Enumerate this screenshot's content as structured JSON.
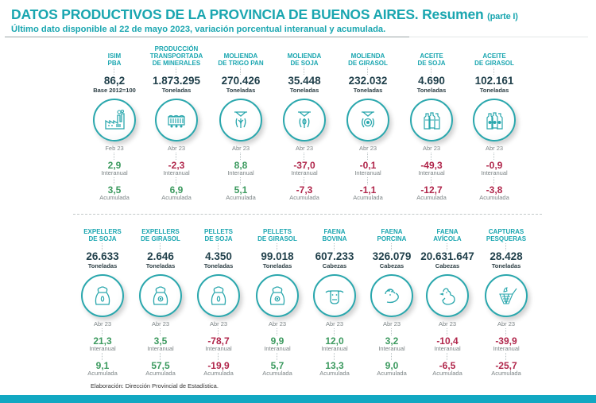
{
  "header": {
    "title": "DATOS PRODUCTIVOS DE LA PROVINCIA DE BUENOS AIRES. Resumen",
    "title_part": "(parte I)",
    "subtitle": "Último dato disponible al 22 de mayo 2023, variación porcentual interanual y acumulada."
  },
  "labels": {
    "interanual": "Interanual",
    "acumulada": "Acumulada"
  },
  "row1": [
    {
      "name1": "ISIM",
      "name2": "PBA",
      "name3": "",
      "value": "86,2",
      "unit": "Base 2012=100",
      "icon": "factory-icon",
      "period": "Feb 23",
      "interanual": "2,9",
      "acumulada": "3,5"
    },
    {
      "name1": "PRODUCCIÓN",
      "name2": "TRANSPORTADA",
      "name3": "DE MINERALES",
      "value": "1.873.295",
      "unit": "Toneladas",
      "icon": "mineral-wagon-icon",
      "period": "Abr 23",
      "interanual": "-2,3",
      "acumulada": "6,9"
    },
    {
      "name1": "MOLIENDA",
      "name2": "DE TRIGO PAN",
      "name3": "",
      "value": "270.426",
      "unit": "Toneladas",
      "icon": "wheat-mill-icon",
      "period": "Abr 23",
      "interanual": "8,8",
      "acumulada": "5,1"
    },
    {
      "name1": "MOLIENDA",
      "name2": "DE SOJA",
      "name3": "",
      "value": "35.448",
      "unit": "Toneladas",
      "icon": "soy-mill-icon",
      "period": "Abr 23",
      "interanual": "-37,0",
      "acumulada": "-7,3"
    },
    {
      "name1": "MOLIENDA",
      "name2": "DE GIRASOL",
      "name3": "",
      "value": "232.032",
      "unit": "Toneladas",
      "icon": "sunflower-mill-icon",
      "period": "Abr 23",
      "interanual": "-0,1",
      "acumulada": "-1,1"
    },
    {
      "name1": "ACEITE",
      "name2": "DE SOJA",
      "name3": "",
      "value": "4.690",
      "unit": "Toneladas",
      "icon": "soy-oil-bottles-icon",
      "period": "Abr 23",
      "interanual": "-49,3",
      "acumulada": "-12,7"
    },
    {
      "name1": "ACEITE",
      "name2": "DE GIRASOL",
      "name3": "",
      "value": "102.161",
      "unit": "Toneladas",
      "icon": "sunflower-oil-bottles-icon",
      "period": "Abr 23",
      "interanual": "-0,9",
      "acumulada": "-3,8"
    }
  ],
  "row2": [
    {
      "name1": "EXPELLERS",
      "name2": "DE SOJA",
      "value": "26.633",
      "unit": "Toneladas",
      "icon": "soy-sack-icon",
      "period": "Abr 23",
      "interanual": "21,3",
      "acumulada": "9,1"
    },
    {
      "name1": "EXPELLERS",
      "name2": "DE GIRASOL",
      "value": "2.646",
      "unit": "Toneladas",
      "icon": "sunflower-sack-icon",
      "period": "Abr 23",
      "interanual": "3,5",
      "acumulada": "57,5"
    },
    {
      "name1": "PELLETS",
      "name2": "DE SOJA",
      "value": "4.350",
      "unit": "Toneladas",
      "icon": "soy-sack-icon",
      "period": "Abr 23",
      "interanual": "-78,7",
      "acumulada": "-19,9"
    },
    {
      "name1": "PELLETS",
      "name2": "DE GIRASOL",
      "value": "99.018",
      "unit": "Toneladas",
      "icon": "sunflower-sack-icon",
      "period": "Abr 23",
      "interanual": "9,9",
      "acumulada": "5,7"
    },
    {
      "name1": "FAENA",
      "name2": "BOVINA",
      "value": "607.233",
      "unit": "Cabezas",
      "icon": "cow-icon",
      "period": "Abr 23",
      "interanual": "12,0",
      "acumulada": "13,3"
    },
    {
      "name1": "FAENA",
      "name2": "PORCINA",
      "value": "326.079",
      "unit": "Cabezas",
      "icon": "pig-icon",
      "period": "Abr 23",
      "interanual": "3,2",
      "acumulada": "9,0"
    },
    {
      "name1": "FAENA",
      "name2": "AVÍCOLA",
      "value": "20.631.647",
      "unit": "Cabezas",
      "icon": "chicken-icon",
      "period": "Abr 23",
      "interanual": "-10,4",
      "acumulada": "-6,5"
    },
    {
      "name1": "CAPTURAS",
      "name2": "PESQUERAS",
      "value": "28.428",
      "unit": "Toneladas",
      "icon": "fishing-net-icon",
      "period": "Abr 23",
      "interanual": "-39,9",
      "acumulada": "-25,7"
    }
  ],
  "colors": {
    "accent": "#1aa6b0",
    "positive": "#3c9a5f",
    "negative": "#b0254a",
    "bottom_bar": "#12a8c2"
  },
  "footer": "Elaboración: Dirección Provincial de Estadística."
}
